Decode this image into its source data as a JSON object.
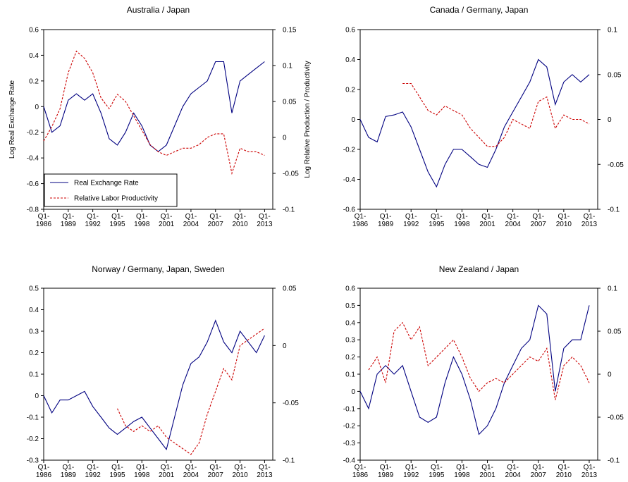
{
  "chart_data": [
    {
      "type": "line",
      "title": "Australia / Japan",
      "y_label": "Log Real Exchange Rate",
      "y2_label": "Log Relative Production / Productivity",
      "x": [
        1986,
        1987,
        1988,
        1989,
        1990,
        1991,
        1992,
        1993,
        1994,
        1995,
        1996,
        1997,
        1998,
        1999,
        2000,
        2001,
        2002,
        2003,
        2004,
        2005,
        2006,
        2007,
        2008,
        2009,
        2010,
        2011,
        2012,
        2013
      ],
      "xlim": [
        1986,
        2014
      ],
      "xticks": [
        {
          "value": 1986,
          "label": "Q1-\n1986"
        },
        {
          "value": 1989,
          "label": "Q1-\n1989"
        },
        {
          "value": 1992,
          "label": "Q1-\n1992"
        },
        {
          "value": 1995,
          "label": "Q1-\n1995"
        },
        {
          "value": 1998,
          "label": "Q1-\n1998"
        },
        {
          "value": 2001,
          "label": "Q1-\n2001"
        },
        {
          "value": 2004,
          "label": "Q1-\n2004"
        },
        {
          "value": 2007,
          "label": "Q1-\n2007"
        },
        {
          "value": 2010,
          "label": "Q1-\n2010"
        },
        {
          "value": 2013,
          "label": "Q1-\n2013"
        }
      ],
      "ylim": [
        -0.8,
        0.6
      ],
      "yticks": [
        -0.8,
        -0.6,
        -0.4,
        -0.2,
        0,
        0.2,
        0.4,
        0.6
      ],
      "y2lim": [
        -0.1,
        0.15
      ],
      "y2ticks": [
        -0.1,
        -0.05,
        0,
        0.05,
        0.1,
        0.15
      ],
      "legend": "lower left",
      "series": [
        {
          "name": "Real Exchange Rate",
          "color": "#000080",
          "line_style": "solid",
          "values": [
            0,
            -0.2,
            -0.15,
            0.05,
            0.1,
            0.05,
            0.1,
            -0.05,
            -0.25,
            -0.3,
            -0.2,
            -0.05,
            -0.15,
            -0.3,
            -0.35,
            -0.3,
            -0.15,
            0.0,
            0.1,
            0.15,
            0.2,
            0.35,
            0.35,
            -0.05,
            0.2,
            0.25,
            0.3,
            0.35
          ]
        },
        {
          "name": "Relative Labor Productivity",
          "color": "#cc0000",
          "line_style": "dashed",
          "axis": "y2",
          "values": [
            -0.005,
            0.015,
            0.04,
            0.09,
            0.12,
            0.11,
            0.09,
            0.055,
            0.04,
            0.06,
            0.05,
            0.03,
            0.01,
            -0.01,
            -0.02,
            -0.025,
            -0.02,
            -0.015,
            -0.015,
            -0.01,
            0.0,
            0.005,
            0.005,
            -0.05,
            -0.015,
            -0.02,
            -0.02,
            -0.025
          ]
        }
      ]
    },
    {
      "type": "line",
      "title": "Canada / Germany, Japan",
      "x": [
        1986,
        1987,
        1988,
        1989,
        1990,
        1991,
        1992,
        1993,
        1994,
        1995,
        1996,
        1997,
        1998,
        1999,
        2000,
        2001,
        2002,
        2003,
        2004,
        2005,
        2006,
        2007,
        2008,
        2009,
        2010,
        2011,
        2012,
        2013
      ],
      "xlim": [
        1986,
        2014
      ],
      "xticks": [
        {
          "value": 1986,
          "label": "Q1-\n1986"
        },
        {
          "value": 1989,
          "label": "Q1-\n1989"
        },
        {
          "value": 1992,
          "label": "Q1-\n1992"
        },
        {
          "value": 1995,
          "label": "Q1-\n1995"
        },
        {
          "value": 1998,
          "label": "Q1-\n1998"
        },
        {
          "value": 2001,
          "label": "Q1-\n2001"
        },
        {
          "value": 2004,
          "label": "Q1-\n2004"
        },
        {
          "value": 2007,
          "label": "Q1-\n2007"
        },
        {
          "value": 2010,
          "label": "Q1-\n2010"
        },
        {
          "value": 2013,
          "label": "Q1-\n2013"
        }
      ],
      "ylim": [
        -0.6,
        0.6
      ],
      "yticks": [
        -0.6,
        -0.4,
        -0.2,
        0,
        0.2,
        0.4,
        0.6
      ],
      "y2lim": [
        -0.1,
        0.1
      ],
      "y2ticks": [
        -0.1,
        -0.05,
        0,
        0.05,
        0.1
      ],
      "series": [
        {
          "name": "Real Exchange Rate",
          "color": "#000080",
          "line_style": "solid",
          "values": [
            0,
            -0.12,
            -0.15,
            0.02,
            0.03,
            0.05,
            -0.05,
            -0.2,
            -0.35,
            -0.45,
            -0.3,
            -0.2,
            -0.2,
            -0.25,
            -0.3,
            -0.32,
            -0.2,
            -0.05,
            0.05,
            0.15,
            0.25,
            0.4,
            0.35,
            0.1,
            0.25,
            0.3,
            0.25,
            0.3
          ]
        },
        {
          "name": "Relative Labor Productivity",
          "color": "#cc0000",
          "line_style": "dashed",
          "axis": "y2",
          "values": [
            null,
            null,
            null,
            null,
            null,
            0.04,
            0.04,
            0.025,
            0.01,
            0.005,
            0.015,
            0.01,
            0.005,
            -0.01,
            -0.02,
            -0.03,
            -0.03,
            -0.02,
            0.0,
            -0.005,
            -0.01,
            0.02,
            0.025,
            -0.01,
            0.005,
            0.0,
            0.0,
            -0.005
          ]
        }
      ]
    },
    {
      "type": "line",
      "title": "Norway / Germany, Japan, Sweden",
      "x": [
        1986,
        1987,
        1988,
        1989,
        1990,
        1991,
        1992,
        1993,
        1994,
        1995,
        1996,
        1997,
        1998,
        1999,
        2000,
        2001,
        2002,
        2003,
        2004,
        2005,
        2006,
        2007,
        2008,
        2009,
        2010,
        2011,
        2012,
        2013
      ],
      "xlim": [
        1986,
        2014
      ],
      "xticks": [
        {
          "value": 1986,
          "label": "Q1-\n1986"
        },
        {
          "value": 1989,
          "label": "Q1-\n1989"
        },
        {
          "value": 1992,
          "label": "Q1-\n1992"
        },
        {
          "value": 1995,
          "label": "Q1-\n1995"
        },
        {
          "value": 1998,
          "label": "Q1-\n1998"
        },
        {
          "value": 2001,
          "label": "Q1-\n2001"
        },
        {
          "value": 2004,
          "label": "Q1-\n2004"
        },
        {
          "value": 2007,
          "label": "Q1-\n2007"
        },
        {
          "value": 2010,
          "label": "Q1-\n2010"
        },
        {
          "value": 2013,
          "label": "Q1-\n2013"
        }
      ],
      "ylim": [
        -0.3,
        0.5
      ],
      "yticks": [
        -0.3,
        -0.2,
        -0.1,
        0,
        0.1,
        0.2,
        0.3,
        0.4,
        0.5
      ],
      "y2lim": [
        -0.1,
        0.05
      ],
      "y2ticks": [
        -0.1,
        -0.05,
        0,
        0.05
      ],
      "series": [
        {
          "name": "Real Exchange Rate",
          "color": "#000080",
          "line_style": "solid",
          "values": [
            0,
            -0.08,
            -0.02,
            -0.02,
            0,
            0.02,
            -0.05,
            -0.1,
            -0.15,
            -0.18,
            -0.15,
            -0.12,
            -0.1,
            -0.15,
            -0.2,
            -0.25,
            -0.1,
            0.05,
            0.15,
            0.18,
            0.25,
            0.35,
            0.25,
            0.2,
            0.3,
            0.25,
            0.2,
            0.28
          ]
        },
        {
          "name": "Relative Labor Productivity",
          "color": "#cc0000",
          "line_style": "dashed",
          "axis": "y2",
          "values": [
            null,
            null,
            null,
            null,
            null,
            null,
            null,
            null,
            null,
            -0.055,
            -0.07,
            -0.075,
            -0.07,
            -0.075,
            -0.07,
            -0.08,
            -0.085,
            -0.09,
            -0.095,
            -0.085,
            -0.06,
            -0.04,
            -0.02,
            -0.03,
            0.0,
            0.005,
            0.01,
            0.015
          ]
        }
      ]
    },
    {
      "type": "line",
      "title": "New Zealand / Japan",
      "x": [
        1986,
        1987,
        1988,
        1989,
        1990,
        1991,
        1992,
        1993,
        1994,
        1995,
        1996,
        1997,
        1998,
        1999,
        2000,
        2001,
        2002,
        2003,
        2004,
        2005,
        2006,
        2007,
        2008,
        2009,
        2010,
        2011,
        2012,
        2013
      ],
      "xlim": [
        1986,
        2014
      ],
      "xticks": [
        {
          "value": 1986,
          "label": "Q1-\n1986"
        },
        {
          "value": 1989,
          "label": "Q1-\n1989"
        },
        {
          "value": 1992,
          "label": "Q1-\n1992"
        },
        {
          "value": 1995,
          "label": "Q1-\n1995"
        },
        {
          "value": 1998,
          "label": "Q1-\n1998"
        },
        {
          "value": 2001,
          "label": "Q1-\n2001"
        },
        {
          "value": 2004,
          "label": "Q1-\n2004"
        },
        {
          "value": 2007,
          "label": "Q1-\n2007"
        },
        {
          "value": 2010,
          "label": "Q1-\n2010"
        },
        {
          "value": 2013,
          "label": "Q1-\n2013"
        }
      ],
      "ylim": [
        -0.4,
        0.6
      ],
      "yticks": [
        -0.4,
        -0.3,
        -0.2,
        -0.1,
        0,
        0.1,
        0.2,
        0.3,
        0.4,
        0.5,
        0.6
      ],
      "y2lim": [
        -0.1,
        0.1
      ],
      "y2ticks": [
        -0.1,
        -0.05,
        0,
        0.05,
        0.1
      ],
      "series": [
        {
          "name": "Real Exchange Rate",
          "color": "#000080",
          "line_style": "solid",
          "values": [
            0,
            -0.1,
            0.1,
            0.15,
            0.1,
            0.15,
            0.0,
            -0.15,
            -0.18,
            -0.15,
            0.05,
            0.2,
            0.1,
            -0.05,
            -0.25,
            -0.2,
            -0.1,
            0.05,
            0.15,
            0.25,
            0.3,
            0.5,
            0.45,
            0.0,
            0.25,
            0.3,
            0.3,
            0.5
          ]
        },
        {
          "name": "Relative Labor Productivity",
          "color": "#cc0000",
          "line_style": "dashed",
          "axis": "y2",
          "values": [
            null,
            0.005,
            0.02,
            -0.01,
            0.05,
            0.06,
            0.04,
            0.055,
            0.01,
            0.02,
            0.03,
            0.04,
            0.02,
            -0.005,
            -0.02,
            -0.01,
            -0.005,
            -0.01,
            0.0,
            0.01,
            0.02,
            0.015,
            0.03,
            -0.03,
            0.01,
            0.02,
            0.01,
            -0.01
          ]
        }
      ]
    }
  ]
}
